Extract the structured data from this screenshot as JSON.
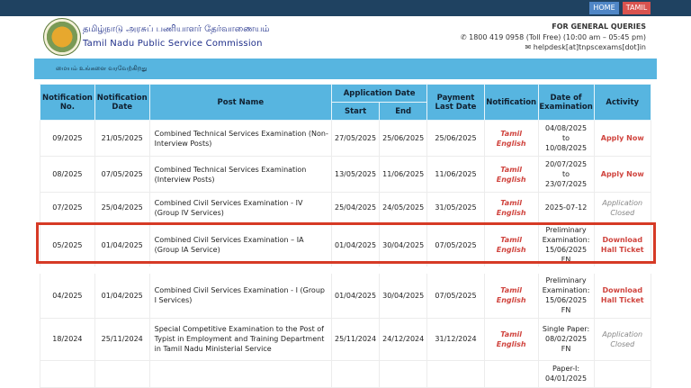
{
  "topnav": {
    "home": "HOME",
    "tamil": "TAMIL"
  },
  "header": {
    "title_tamil": "தமிழ்நாடு அரசுப் பணியாளர் தேர்வாணையம்",
    "title_english": "Tamil Nadu Public Service Commission",
    "queries_label": "FOR GENERAL QUERIES",
    "phone": "1800 419 0958 (Toll Free) (10:00 am – 05:45 pm)",
    "email": "helpdesk[at]tnpscexams[dot]in"
  },
  "welcome": "மையம் உங்களை வரவேற்கிறது",
  "table": {
    "headers": {
      "no": "Notification No.",
      "date": "Notification Date",
      "post": "Post Name",
      "app": "Application Date",
      "start": "Start",
      "end": "End",
      "pay": "Payment Last Date",
      "notif": "Notification",
      "exam": "Date of Examination",
      "activity": "Activity"
    },
    "rows": [
      {
        "no": "09/2025",
        "date": "21/05/2025",
        "post": "Combined Technical Services Examination (Non-Interview Posts)",
        "start": "27/05/2025",
        "end": "25/06/2025",
        "pay": "25/06/2025",
        "tamil": "Tamil",
        "english": "English",
        "exam": "04/08/2025 to 10/08/2025",
        "activity": "Apply Now",
        "type": "act"
      },
      {
        "no": "08/2025",
        "date": "07/05/2025",
        "post": "Combined Technical Services Examination (Interview Posts)",
        "start": "13/05/2025",
        "end": "11/06/2025",
        "pay": "11/06/2025",
        "tamil": "Tamil",
        "english": "English",
        "exam": "20/07/2025 to 23/07/2025",
        "activity": "Apply Now",
        "type": "act"
      },
      {
        "no": "07/2025",
        "date": "25/04/2025",
        "post": "Combined Civil Services Examination - IV (Group IV Services)",
        "start": "25/04/2025",
        "end": "24/05/2025",
        "pay": "31/05/2025",
        "tamil": "Tamil",
        "english": "English",
        "exam": "2025-07-12",
        "activity": "Application Closed",
        "type": "closed"
      },
      {
        "no": "05/2025",
        "date": "01/04/2025",
        "post": "Combined Civil Services Examination – IA (Group IA Service)",
        "start": "01/04/2025",
        "end": "30/04/2025",
        "pay": "07/05/2025",
        "tamil": "Tamil",
        "english": "English",
        "exam": "Preliminary Examination: 15/06/2025 FN",
        "activity": "Download Hall Ticket",
        "type": "act"
      },
      {
        "no": "04/2025",
        "date": "01/04/2025",
        "post": "Combined Civil Services Examination - I (Group I Services)",
        "start": "01/04/2025",
        "end": "30/04/2025",
        "pay": "07/05/2025",
        "tamil": "Tamil",
        "english": "English",
        "exam": "Preliminary Examination: 15/06/2025 FN",
        "activity": "Download Hall Ticket",
        "type": "act"
      },
      {
        "no": "18/2024",
        "date": "25/11/2024",
        "post": "Special Competitive Examination to the Post of Typist in Employment and Training Department in Tamil Nadu Ministerial Service",
        "start": "25/11/2024",
        "end": "24/12/2024",
        "pay": "31/12/2024",
        "tamil": "Tamil",
        "english": "English",
        "exam": "Single Paper: 08/02/2025 FN",
        "activity": "Application Closed",
        "type": "closed"
      },
      {
        "no": "",
        "date": "",
        "post": "",
        "start": "",
        "end": "",
        "pay": "",
        "tamil": "",
        "english": "",
        "exam": "Paper-I: 04/01/2025",
        "activity": "",
        "type": "closed"
      }
    ]
  },
  "colors": {
    "topbar": "#1f4261",
    "accent": "#57b5e0",
    "link": "#d0453f",
    "highlight": "#d63a26"
  }
}
